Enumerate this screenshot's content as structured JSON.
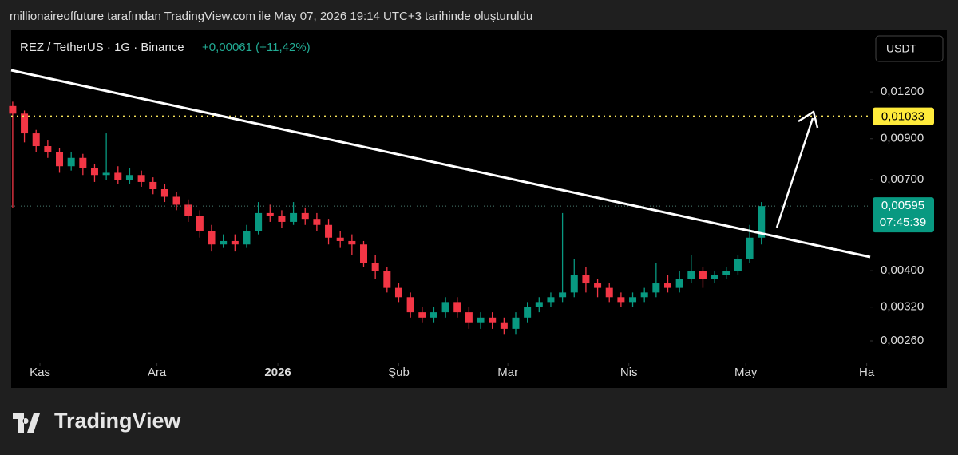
{
  "header": {
    "credit": "millionaireoffuture tarafından TradingView.com ile May 07, 2026 19:14 UTC+3 tarihinde oluşturuldu"
  },
  "chart_data": {
    "type": "candlestick",
    "title": "REZ / TetherUS · 1G · Binance",
    "change": "+0,00061 (+11,42%)",
    "currency": "USDT",
    "log_scale": true,
    "up_color": "#089981",
    "down_color": "#f23645",
    "categories": [
      null,
      null,
      null,
      null,
      null,
      null,
      null,
      null,
      null,
      null,
      null,
      null,
      null,
      null,
      null,
      null,
      null,
      null,
      null,
      null,
      null,
      null,
      null,
      null,
      null,
      null,
      null,
      null,
      null,
      null,
      null,
      null,
      null,
      null,
      null,
      null,
      null,
      null,
      null,
      null,
      null,
      null,
      null,
      null,
      null,
      null,
      null,
      null,
      null,
      null,
      null,
      null,
      null,
      null,
      null,
      null,
      null,
      null,
      null,
      null,
      null,
      null,
      null,
      null,
      null
    ],
    "series": {
      "open": [
        0.011,
        0.0105,
        0.0093,
        0.0086,
        0.0083,
        0.0076,
        0.008,
        0.0075,
        0.0072,
        0.0073,
        0.007,
        0.0072,
        0.0069,
        0.0066,
        0.0063,
        0.006,
        0.0056,
        0.0051,
        0.0047,
        0.0048,
        0.0047,
        0.0051,
        0.0057,
        0.0056,
        0.0054,
        0.0057,
        0.0055,
        0.0053,
        0.0049,
        0.0048,
        0.0047,
        0.0042,
        0.004,
        0.0036,
        0.0034,
        0.0031,
        0.003,
        0.0031,
        0.0033,
        0.0031,
        0.0029,
        0.003,
        0.0029,
        0.0028,
        0.003,
        0.0032,
        0.0033,
        0.0034,
        0.0035,
        0.0039,
        0.0037,
        0.0036,
        0.0034,
        0.0033,
        0.0034,
        0.0035,
        0.0037,
        0.0036,
        0.0038,
        0.004,
        0.0038,
        0.0039,
        0.004,
        0.0043,
        0.0049
      ],
      "high": [
        0.0113,
        0.0107,
        0.0095,
        0.0089,
        0.0085,
        0.0083,
        0.0082,
        0.0077,
        0.0093,
        0.0076,
        0.0075,
        0.0074,
        0.0071,
        0.0068,
        0.0065,
        0.0062,
        0.0058,
        0.0053,
        0.005,
        0.005,
        0.0053,
        0.0061,
        0.006,
        0.0058,
        0.0061,
        0.0059,
        0.0057,
        0.0055,
        0.0051,
        0.005,
        0.0048,
        0.0044,
        0.0041,
        0.0037,
        0.0035,
        0.0032,
        0.0032,
        0.0034,
        0.0034,
        0.0032,
        0.0031,
        0.0031,
        0.003,
        0.0031,
        0.0033,
        0.0034,
        0.0035,
        0.0057,
        0.0043,
        0.0041,
        0.0038,
        0.0037,
        0.0035,
        0.0035,
        0.0036,
        0.0042,
        0.0039,
        0.004,
        0.0044,
        0.0041,
        0.004,
        0.0041,
        0.0044,
        0.0053,
        0.0061
      ],
      "low": [
        0.0059,
        0.0088,
        0.0083,
        0.008,
        0.0073,
        0.0074,
        0.0072,
        0.0069,
        0.007,
        0.0068,
        0.0068,
        0.0067,
        0.0064,
        0.0061,
        0.0058,
        0.0054,
        0.0049,
        0.0045,
        0.0046,
        0.0045,
        0.0046,
        0.005,
        0.0054,
        0.0052,
        0.0053,
        0.0053,
        0.0051,
        0.0047,
        0.0046,
        0.0044,
        0.0041,
        0.0038,
        0.0035,
        0.0033,
        0.003,
        0.0029,
        0.0029,
        0.003,
        0.003,
        0.0028,
        0.0028,
        0.0028,
        0.0027,
        0.0027,
        0.0029,
        0.0031,
        0.0032,
        0.0033,
        0.0034,
        0.0035,
        0.0034,
        0.0033,
        0.0032,
        0.0032,
        0.0033,
        0.0034,
        0.0035,
        0.0035,
        0.0037,
        0.0036,
        0.0037,
        0.0038,
        0.0039,
        0.0042,
        0.0047
      ],
      "close": [
        0.0105,
        0.0093,
        0.0086,
        0.0083,
        0.0076,
        0.008,
        0.0075,
        0.0072,
        0.0073,
        0.007,
        0.0072,
        0.0069,
        0.0066,
        0.0063,
        0.006,
        0.0056,
        0.0051,
        0.0047,
        0.0048,
        0.0047,
        0.0051,
        0.0057,
        0.0056,
        0.0054,
        0.0057,
        0.0055,
        0.0053,
        0.0049,
        0.0048,
        0.0047,
        0.0042,
        0.004,
        0.0036,
        0.0034,
        0.0031,
        0.003,
        0.0031,
        0.0033,
        0.0031,
        0.0029,
        0.003,
        0.0029,
        0.0028,
        0.003,
        0.0032,
        0.0033,
        0.0034,
        0.0035,
        0.0039,
        0.0037,
        0.0036,
        0.0034,
        0.0033,
        0.0034,
        0.0035,
        0.0037,
        0.0036,
        0.0038,
        0.004,
        0.0038,
        0.0039,
        0.004,
        0.0043,
        0.0049,
        0.00595
      ]
    },
    "xlim": [
      -0.13,
      73.3
    ],
    "xticks": [
      {
        "value": 2.33,
        "label": "Kas"
      },
      {
        "value": 12.33,
        "label": "Ara"
      },
      {
        "value": 22.67,
        "label": "2026"
      },
      {
        "value": 33,
        "label": "Şub"
      },
      {
        "value": 42.33,
        "label": "Mar"
      },
      {
        "value": 52.67,
        "label": "Nis"
      },
      {
        "value": 62.67,
        "label": "May"
      },
      {
        "value": 73,
        "label": "Ha"
      }
    ],
    "ylim": [
      0.0023,
      0.01734
    ],
    "yticks": [
      {
        "value": 0.012,
        "label": "0,01200"
      },
      {
        "value": 0.009,
        "label": "0,00900"
      },
      {
        "value": 0.007,
        "label": "0,00700"
      },
      {
        "value": 0.004,
        "label": "0,00400"
      },
      {
        "value": 0.0032,
        "label": "0,00320"
      },
      {
        "value": 0.0026,
        "label": "0,00260"
      }
    ],
    "level": {
      "value": 0.01033,
      "label": "0,01033"
    },
    "last_price": {
      "value": 0.00595,
      "label": "0,00595"
    },
    "countdown": "07:45:39"
  },
  "footer": {
    "logo": "TradingView"
  }
}
